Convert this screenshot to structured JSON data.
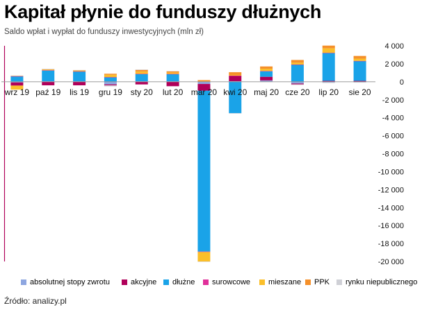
{
  "title": "Kapitał płynie do funduszy dłużnych",
  "subtitle": "Saldo wpłat i wypłat do funduszy inwestycyjnych (mln zł)",
  "source": "Źródło: analizy.pl",
  "chart_data": {
    "type": "bar",
    "stacked": true,
    "categories": [
      "wrz 19",
      "paź 19",
      "lis 19",
      "gru 19",
      "sty 20",
      "lut 20",
      "mar 20",
      "kwi 20",
      "maj 20",
      "cze 20",
      "lip 20",
      "sie 20"
    ],
    "ylim": [
      -20000,
      4000
    ],
    "yticks": [
      4000,
      2000,
      0,
      -2000,
      -4000,
      -6000,
      -8000,
      -10000,
      -12000,
      -14000,
      -16000,
      -18000,
      -20000
    ],
    "ytick_labels": [
      "4 000",
      "2 000",
      "0",
      "-2 000",
      "-4 000",
      "-6 000",
      "-8 000",
      "-10 000",
      "-12 000",
      "-14 000",
      "-16 000",
      "-18 000",
      "-20 000"
    ],
    "legend_position": "bottom",
    "grid": false,
    "series": [
      {
        "name": "absolutnej stopy zwrotu",
        "color": "#8ea6e0",
        "values": [
          -80,
          60,
          40,
          -300,
          60,
          50,
          -250,
          60,
          150,
          -200,
          -80,
          -50
        ]
      },
      {
        "name": "akcyjne",
        "color": "#b0005a",
        "values": [
          -350,
          -400,
          -400,
          -100,
          -300,
          -500,
          -750,
          600,
          400,
          -100,
          100,
          100
        ]
      },
      {
        "name": "dłużne",
        "color": "#1aa3e8",
        "values": [
          600,
          1200,
          1100,
          500,
          800,
          800,
          -17900,
          -3500,
          600,
          1900,
          3100,
          2200
        ]
      },
      {
        "name": "surowcowe",
        "color": "#e0309a",
        "values": [
          20,
          20,
          20,
          20,
          20,
          20,
          -50,
          20,
          50,
          20,
          20,
          20
        ]
      },
      {
        "name": "mieszane",
        "color": "#fbbf2a",
        "values": [
          -450,
          80,
          30,
          250,
          250,
          150,
          -1050,
          80,
          250,
          200,
          500,
          250
        ]
      },
      {
        "name": "PPK",
        "color": "#f5902a",
        "values": [
          40,
          40,
          80,
          120,
          200,
          150,
          180,
          300,
          250,
          300,
          300,
          300
        ]
      },
      {
        "name": "rynku niepublicznego",
        "color": "#cfd0d6",
        "values": [
          30,
          30,
          30,
          -120,
          20,
          20,
          -40,
          -50,
          -30,
          -60,
          -60,
          -30
        ]
      }
    ]
  }
}
